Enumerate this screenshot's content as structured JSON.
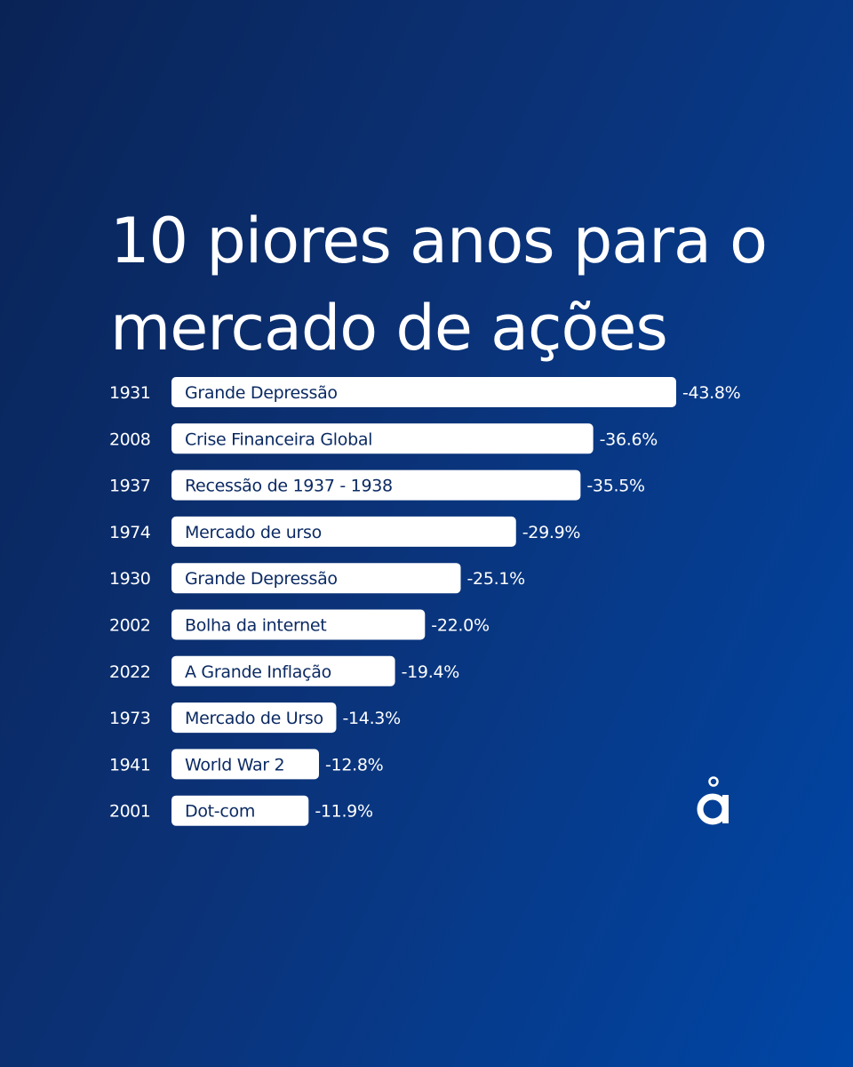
{
  "header": {
    "title_line1": "10 piores anos para o",
    "title_line2": "mercado de ações"
  },
  "chart_data": {
    "type": "bar",
    "orientation": "horizontal",
    "title": "10 piores anos para o mercado de ações",
    "categories": [
      "1931",
      "2008",
      "1937",
      "1974",
      "1930",
      "2002",
      "2022",
      "1973",
      "1941",
      "2001"
    ],
    "labels": [
      "Grande Depressão",
      "Crise Financeira Global",
      "Recessão de 1937 - 1938",
      "Mercado de urso",
      "Grande Depressão",
      "Bolha da internet",
      "A Grande Inflação",
      "Mercado de Urso",
      "World War 2",
      "Dot-com"
    ],
    "values": [
      -43.8,
      -36.6,
      -35.5,
      -29.9,
      -25.1,
      -22.0,
      -19.4,
      -14.3,
      -12.8,
      -11.9
    ],
    "value_labels": [
      "-43.8%",
      "-36.6%",
      "-35.5%",
      "-29.9%",
      "-25.1%",
      "-22.0%",
      "-19.4%",
      "-14.3%",
      "-12.8%",
      "-11.9%"
    ],
    "grid": false,
    "legend": "none"
  },
  "colors": {
    "background_start": "#0a2356",
    "background_end": "#0046a6",
    "bar": "#ffffff",
    "bar_text": "#0b2a63",
    "text": "#ffffff"
  },
  "logo": {
    "icon": "a-ring-logo-icon"
  }
}
